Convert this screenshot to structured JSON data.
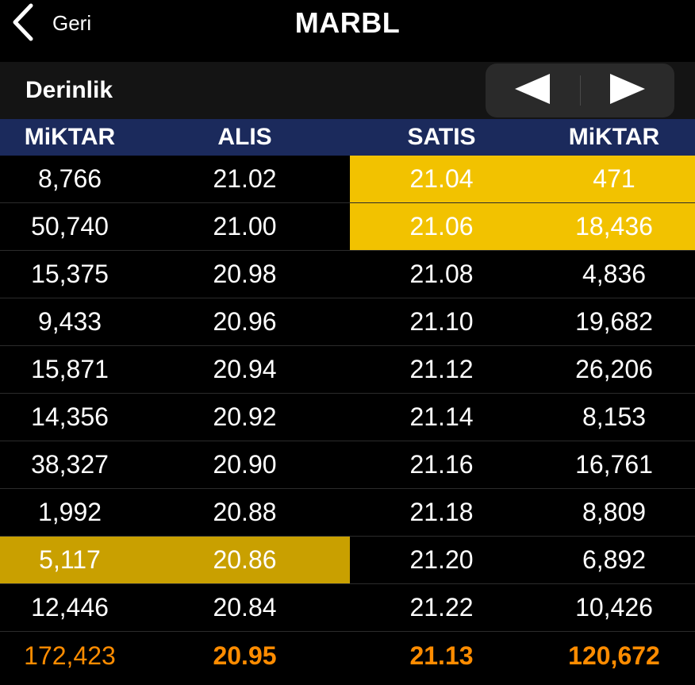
{
  "nav": {
    "back_label": "Geri",
    "title": "MARBL"
  },
  "section": {
    "title": "Derinlik"
  },
  "colors": {
    "header_bg": "#1b2a5c",
    "highlight_sell": "#f2c200",
    "highlight_buy": "#c9a000",
    "total_text": "#ff8c00"
  },
  "table": {
    "headers": [
      "MiKTAR",
      "ALIS",
      "SATIS",
      "MiKTAR"
    ],
    "rows": [
      [
        "8,766",
        "21.02",
        "21.04",
        "471"
      ],
      [
        "50,740",
        "21.00",
        "21.06",
        "18,436"
      ],
      [
        "15,375",
        "20.98",
        "21.08",
        "4,836"
      ],
      [
        "9,433",
        "20.96",
        "21.10",
        "19,682"
      ],
      [
        "15,871",
        "20.94",
        "21.12",
        "26,206"
      ],
      [
        "14,356",
        "20.92",
        "21.14",
        "8,153"
      ],
      [
        "38,327",
        "20.90",
        "21.16",
        "16,761"
      ],
      [
        "1,992",
        "20.88",
        "21.18",
        "8,809"
      ],
      [
        "5,117",
        "20.86",
        "21.20",
        "6,892"
      ],
      [
        "12,446",
        "20.84",
        "21.22",
        "10,426"
      ]
    ],
    "totals": [
      "172,423",
      "20.95",
      "21.13",
      "120,672"
    ]
  }
}
